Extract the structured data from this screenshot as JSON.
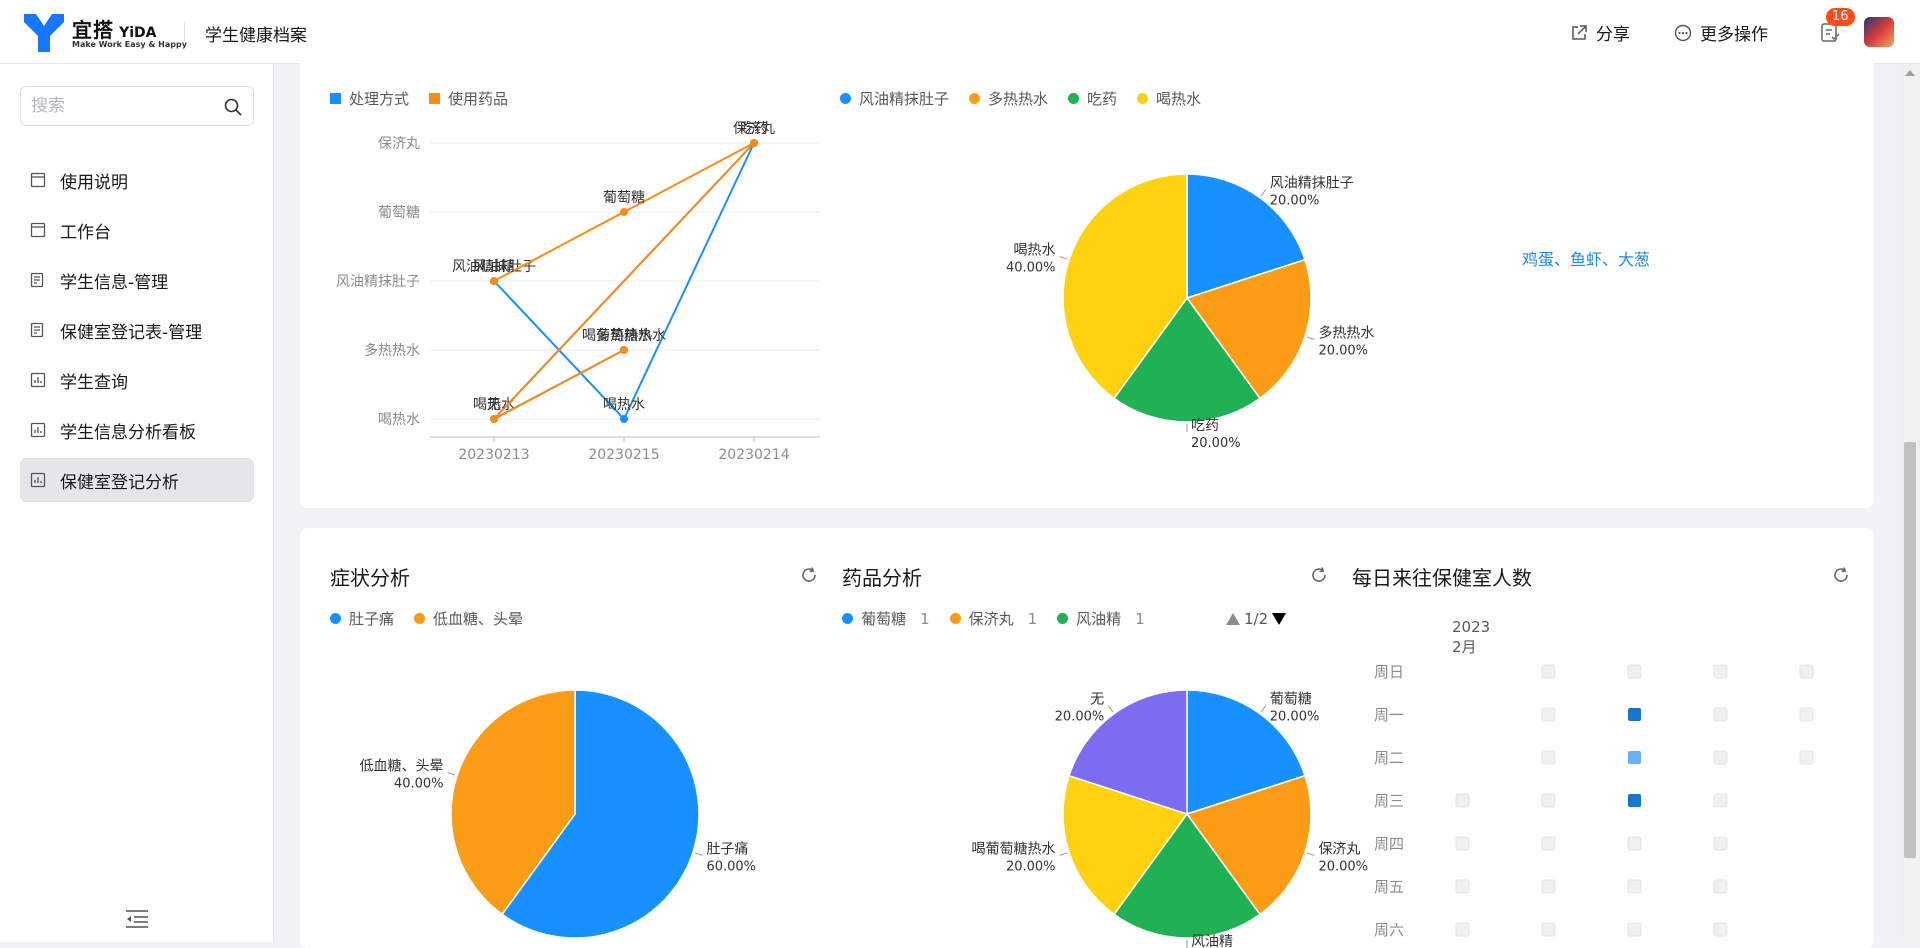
{
  "header": {
    "logo_cn": "宜搭",
    "logo_en": "YiDA",
    "logo_sub": "Make Work Easy & Happy",
    "app_name": "学生健康档案",
    "share_label": "分享",
    "more_label": "更多操作",
    "todo_badge": "16"
  },
  "sidebar": {
    "search_placeholder": "搜索",
    "items": [
      {
        "label": "使用说明",
        "icon": "doc-icon"
      },
      {
        "label": "工作台",
        "icon": "doc-icon"
      },
      {
        "label": "学生信息-管理",
        "icon": "form-icon"
      },
      {
        "label": "保健室登记表-管理",
        "icon": "form-icon"
      },
      {
        "label": "学生查询",
        "icon": "report-icon"
      },
      {
        "label": "学生信息分析看板",
        "icon": "report-icon"
      },
      {
        "label": "保健室登记分析",
        "icon": "report-icon",
        "active": true
      }
    ]
  },
  "top_card": {
    "link_text": "鸡蛋、鱼虾、大葱"
  },
  "symptom": {
    "title": "症状分析"
  },
  "medicine": {
    "title": "药品分析",
    "pager": "1/2"
  },
  "daily": {
    "title": "每日来往保健室人数",
    "year": "2023",
    "month": "2月",
    "weekdays": [
      "周日",
      "周一",
      "周二",
      "周三",
      "周四",
      "周五",
      "周六"
    ]
  },
  "chart_data": [
    {
      "type": "line",
      "legend": [
        {
          "name": "处理方式",
          "color": "#1890ff"
        },
        {
          "name": "使用药品",
          "color": "#fa8c16"
        }
      ],
      "categories": [
        "20230213",
        "20230215",
        "20230214"
      ],
      "y_categories": [
        "喝热水",
        "多热热水",
        "风油精抹肚子",
        "葡萄糖",
        "保济丸"
      ],
      "series": [
        {
          "name": "处理方式",
          "points": [
            {
              "x": "20230213",
              "y": "风油精抹肚子",
              "label": "风油精抹肚子"
            },
            {
              "x": "20230215",
              "y": "喝热水",
              "label": "喝热水"
            },
            {
              "x": "20230214",
              "y": "保济丸",
              "label": "吃药"
            },
            {
              "x": "20230213",
              "y": "喝热水",
              "label": "喝热水"
            },
            {
              "x": "20230215",
              "y": "多热热水",
              "label": "多热热水"
            }
          ]
        },
        {
          "name": "使用药品",
          "points": [
            {
              "x": "20230213",
              "y": "风油精抹肚子",
              "label": "风油精"
            },
            {
              "x": "20230215",
              "y": "葡萄糖",
              "label": "葡萄糖"
            },
            {
              "x": "20230214",
              "y": "保济丸",
              "label": "保济丸"
            },
            {
              "x": "20230213",
              "y": "喝热水",
              "label": "无"
            },
            {
              "x": "20230215",
              "y": "多热热水",
              "label": "喝葡萄糖热水"
            }
          ]
        }
      ]
    },
    {
      "type": "pie",
      "slices": [
        {
          "name": "风油精抹肚子",
          "pct": "20.00%",
          "value": 20,
          "color": "#1890ff"
        },
        {
          "name": "多热热水",
          "pct": "20.00%",
          "value": 20,
          "color": "#fa9c16"
        },
        {
          "name": "吃药",
          "pct": "20.00%",
          "value": 20,
          "color": "#1fb153"
        },
        {
          "name": "喝热水",
          "pct": "40.00%",
          "value": 40,
          "color": "#fed20f"
        }
      ]
    },
    {
      "type": "pie",
      "title": "症状分析",
      "slices": [
        {
          "name": "肚子痛",
          "pct": "60.00%",
          "value": 60,
          "color": "#1890ff"
        },
        {
          "name": "低血糖、头晕",
          "pct": "40.00%",
          "value": 40,
          "color": "#fa9c16"
        }
      ]
    },
    {
      "type": "pie",
      "title": "药品分析",
      "legend": [
        {
          "name": "葡萄糖",
          "count": "1",
          "color": "#1890ff"
        },
        {
          "name": "保济丸",
          "count": "1",
          "color": "#fa9c16"
        },
        {
          "name": "风油精",
          "count": "1",
          "color": "#1fb153"
        }
      ],
      "slices": [
        {
          "name": "葡萄糖",
          "pct": "20.00%",
          "value": 20,
          "color": "#1890ff"
        },
        {
          "name": "保济丸",
          "pct": "20.00%",
          "value": 20,
          "color": "#fa9c16"
        },
        {
          "name": "风油精",
          "pct": "",
          "value": 20,
          "color": "#1fb153"
        },
        {
          "name": "喝葡萄糖热水",
          "pct": "20.00%",
          "value": 20,
          "color": "#fed20f"
        },
        {
          "name": "无",
          "pct": "20.00%",
          "value": 20,
          "color": "#7b6cf0"
        }
      ]
    },
    {
      "type": "heatmap",
      "title": "每日来往保健室人数",
      "cells": [
        {
          "day": "周日",
          "week": 1,
          "level": 0
        },
        {
          "day": "周日",
          "week": 2,
          "level": 0
        },
        {
          "day": "周日",
          "week": 3,
          "level": 0
        },
        {
          "day": "周日",
          "week": 4,
          "level": 0
        },
        {
          "day": "周一",
          "week": 1,
          "level": 0
        },
        {
          "day": "周一",
          "week": 2,
          "level": 2
        },
        {
          "day": "周一",
          "week": 3,
          "level": 0
        },
        {
          "day": "周一",
          "week": 4,
          "level": 0
        },
        {
          "day": "周二",
          "week": 1,
          "level": 0
        },
        {
          "day": "周二",
          "week": 2,
          "level": 1
        },
        {
          "day": "周二",
          "week": 3,
          "level": 0
        },
        {
          "day": "周二",
          "week": 4,
          "level": 0
        },
        {
          "day": "周三",
          "week": 0,
          "level": 0
        },
        {
          "day": "周三",
          "week": 1,
          "level": 0
        },
        {
          "day": "周三",
          "week": 2,
          "level": 2
        },
        {
          "day": "周三",
          "week": 3,
          "level": 0
        },
        {
          "day": "周四",
          "week": 0,
          "level": 0
        },
        {
          "day": "周四",
          "week": 1,
          "level": 0
        },
        {
          "day": "周四",
          "week": 2,
          "level": 0
        },
        {
          "day": "周四",
          "week": 3,
          "level": 0
        },
        {
          "day": "周五",
          "week": 0,
          "level": 0
        },
        {
          "day": "周五",
          "week": 1,
          "level": 0
        },
        {
          "day": "周五",
          "week": 2,
          "level": 0
        },
        {
          "day": "周五",
          "week": 3,
          "level": 0
        },
        {
          "day": "周六",
          "week": 0,
          "level": 0
        },
        {
          "day": "周六",
          "week": 1,
          "level": 0
        },
        {
          "day": "周六",
          "week": 2,
          "level": 0
        },
        {
          "day": "周六",
          "week": 3,
          "level": 0
        }
      ]
    }
  ]
}
